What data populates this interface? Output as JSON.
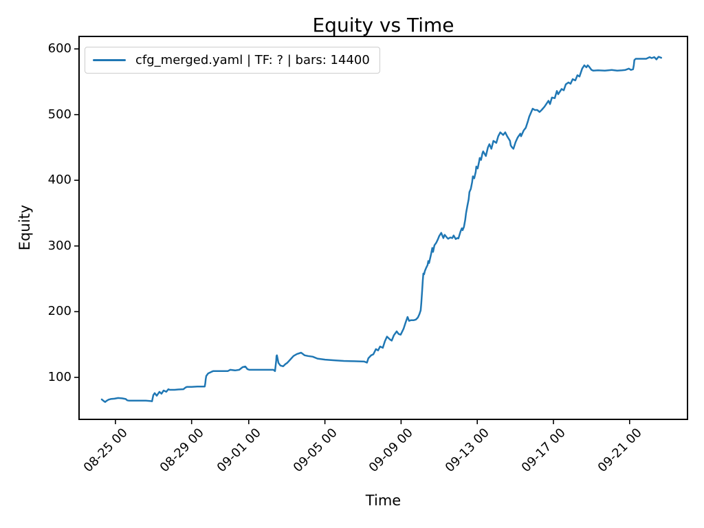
{
  "chart_data": {
    "type": "line",
    "title": "Equity vs Time",
    "xlabel": "Time",
    "ylabel": "Equity",
    "legend_position": "upper left",
    "line_color": "#1f77b4",
    "background_color": "#ffffff",
    "grid": false,
    "x_unit": "days since 08-23 00:00",
    "xlim_days": [
      0.09,
      32.04
    ],
    "ylim": [
      36,
      619
    ],
    "yticks": [
      100,
      200,
      300,
      400,
      500,
      600
    ],
    "xticks": [
      {
        "t": 2,
        "label": "08-25 00"
      },
      {
        "t": 6,
        "label": "08-29 00"
      },
      {
        "t": 9,
        "label": "09-01 00"
      },
      {
        "t": 13,
        "label": "09-05 00"
      },
      {
        "t": 17,
        "label": "09-09 00"
      },
      {
        "t": 21,
        "label": "09-13 00"
      },
      {
        "t": 25,
        "label": "09-17 00"
      },
      {
        "t": 29,
        "label": "09-21 00"
      }
    ],
    "series": [
      {
        "name": "cfg_merged.yaml | TF: ? | bars: 14400",
        "points": [
          [
            1.28,
            66.5
          ],
          [
            1.38,
            64.0
          ],
          [
            1.46,
            62.5
          ],
          [
            1.55,
            64.5
          ],
          [
            1.64,
            66.0
          ],
          [
            1.75,
            67.0
          ],
          [
            1.95,
            67.5
          ],
          [
            2.14,
            68.5
          ],
          [
            2.35,
            68.0
          ],
          [
            2.54,
            67.0
          ],
          [
            2.62,
            65.0
          ],
          [
            2.72,
            64.5
          ],
          [
            3.0,
            64.5
          ],
          [
            3.34,
            64.5
          ],
          [
            3.6,
            64.5
          ],
          [
            3.81,
            64.0
          ],
          [
            3.92,
            63.5
          ],
          [
            3.99,
            73.0
          ],
          [
            4.06,
            76.0
          ],
          [
            4.17,
            72.0
          ],
          [
            4.31,
            78.0
          ],
          [
            4.42,
            75.0
          ],
          [
            4.53,
            80.0
          ],
          [
            4.67,
            78.0
          ],
          [
            4.78,
            82.0
          ],
          [
            4.85,
            81.0
          ],
          [
            5.1,
            81.0
          ],
          [
            5.3,
            81.5
          ],
          [
            5.57,
            82.0
          ],
          [
            5.68,
            84.5
          ],
          [
            5.76,
            85.5
          ],
          [
            6.0,
            85.5
          ],
          [
            6.3,
            86.0
          ],
          [
            6.69,
            86.0
          ],
          [
            6.72,
            91.0
          ],
          [
            6.74,
            97.0
          ],
          [
            6.77,
            102.0
          ],
          [
            6.87,
            106.0
          ],
          [
            7.05,
            108.5
          ],
          [
            7.13,
            109.5
          ],
          [
            7.5,
            109.5
          ],
          [
            7.9,
            109.5
          ],
          [
            8.03,
            111.5
          ],
          [
            8.28,
            110.5
          ],
          [
            8.5,
            111.5
          ],
          [
            8.68,
            115.5
          ],
          [
            8.82,
            116.5
          ],
          [
            8.93,
            112.5
          ],
          [
            9.04,
            111.5
          ],
          [
            9.5,
            111.5
          ],
          [
            10.0,
            111.5
          ],
          [
            10.3,
            111.5
          ],
          [
            10.38,
            109.5
          ],
          [
            10.44,
            125.0
          ],
          [
            10.46,
            132.5
          ],
          [
            10.48,
            133.5
          ],
          [
            10.56,
            122.0
          ],
          [
            10.66,
            118.0
          ],
          [
            10.81,
            116.8
          ],
          [
            10.92,
            120.0
          ],
          [
            11.02,
            122.0
          ],
          [
            11.21,
            128.0
          ],
          [
            11.35,
            132.5
          ],
          [
            11.53,
            135.5
          ],
          [
            11.64,
            136.5
          ],
          [
            11.75,
            137.5
          ],
          [
            11.93,
            133.5
          ],
          [
            12.11,
            132.5
          ],
          [
            12.36,
            131.5
          ],
          [
            12.61,
            128.5
          ],
          [
            13.01,
            127.0
          ],
          [
            13.44,
            126.0
          ],
          [
            13.99,
            125.0
          ],
          [
            14.53,
            124.5
          ],
          [
            15.07,
            124.0
          ],
          [
            15.21,
            122.5
          ],
          [
            15.28,
            129.0
          ],
          [
            15.43,
            133.5
          ],
          [
            15.54,
            135.0
          ],
          [
            15.68,
            143.0
          ],
          [
            15.79,
            141.0
          ],
          [
            15.9,
            147.0
          ],
          [
            16.04,
            145.0
          ],
          [
            16.15,
            155.0
          ],
          [
            16.26,
            162.0
          ],
          [
            16.4,
            158.0
          ],
          [
            16.51,
            156.0
          ],
          [
            16.62,
            164.0
          ],
          [
            16.77,
            170.0
          ],
          [
            16.87,
            166.0
          ],
          [
            16.98,
            165.0
          ],
          [
            17.13,
            174.0
          ],
          [
            17.23,
            183.0
          ],
          [
            17.34,
            192.0
          ],
          [
            17.42,
            186.0
          ],
          [
            17.52,
            187.0
          ],
          [
            17.67,
            187.0
          ],
          [
            17.78,
            188.0
          ],
          [
            17.88,
            191.0
          ],
          [
            17.96,
            196.0
          ],
          [
            18.03,
            202.0
          ],
          [
            18.06,
            213.0
          ],
          [
            18.1,
            230.0
          ],
          [
            18.14,
            248.0
          ],
          [
            18.17,
            258.0
          ],
          [
            18.21,
            257.0
          ],
          [
            18.25,
            262.0
          ],
          [
            18.32,
            267.0
          ],
          [
            18.39,
            271.0
          ],
          [
            18.43,
            277.0
          ],
          [
            18.47,
            274.0
          ],
          [
            18.57,
            287.0
          ],
          [
            18.64,
            297.0
          ],
          [
            18.68,
            291.0
          ],
          [
            18.75,
            301.0
          ],
          [
            18.85,
            305.0
          ],
          [
            18.93,
            310.0
          ],
          [
            19.0,
            315.0
          ],
          [
            19.11,
            320.0
          ],
          [
            19.22,
            312.0
          ],
          [
            19.29,
            317.0
          ],
          [
            19.4,
            313.0
          ],
          [
            19.47,
            311.0
          ],
          [
            19.58,
            313.0
          ],
          [
            19.69,
            312.0
          ],
          [
            19.76,
            316.0
          ],
          [
            19.87,
            310.5
          ],
          [
            19.95,
            312.0
          ],
          [
            20.01,
            311.5
          ],
          [
            20.12,
            322.0
          ],
          [
            20.19,
            327.0
          ],
          [
            20.23,
            324.0
          ],
          [
            20.3,
            329.0
          ],
          [
            20.37,
            340.0
          ],
          [
            20.41,
            350.0
          ],
          [
            20.48,
            361.0
          ],
          [
            20.55,
            371.0
          ],
          [
            20.59,
            382.0
          ],
          [
            20.66,
            387.0
          ],
          [
            20.73,
            397.0
          ],
          [
            20.77,
            406.0
          ],
          [
            20.84,
            403.0
          ],
          [
            20.92,
            413.0
          ],
          [
            20.95,
            421.0
          ],
          [
            21.02,
            418.0
          ],
          [
            21.1,
            429.0
          ],
          [
            21.13,
            434.0
          ],
          [
            21.2,
            431.0
          ],
          [
            21.27,
            441.0
          ],
          [
            21.31,
            444.0
          ],
          [
            21.45,
            437.0
          ],
          [
            21.56,
            450.0
          ],
          [
            21.64,
            455.0
          ],
          [
            21.74,
            448.0
          ],
          [
            21.85,
            460.0
          ],
          [
            22.0,
            457.0
          ],
          [
            22.1,
            467.0
          ],
          [
            22.21,
            473.0
          ],
          [
            22.36,
            469.0
          ],
          [
            22.47,
            473.0
          ],
          [
            22.57,
            467.0
          ],
          [
            22.72,
            460.0
          ],
          [
            22.76,
            453.0
          ],
          [
            22.83,
            450.0
          ],
          [
            22.9,
            448.0
          ],
          [
            23.01,
            458.0
          ],
          [
            23.12,
            465.0
          ],
          [
            23.26,
            471.0
          ],
          [
            23.3,
            467.0
          ],
          [
            23.44,
            476.0
          ],
          [
            23.55,
            480.0
          ],
          [
            23.66,
            490.0
          ],
          [
            23.73,
            497.0
          ],
          [
            23.91,
            509.0
          ],
          [
            24.02,
            507.0
          ],
          [
            24.15,
            507.0
          ],
          [
            24.27,
            504.0
          ],
          [
            24.38,
            507.0
          ],
          [
            24.53,
            512.0
          ],
          [
            24.74,
            521.0
          ],
          [
            24.82,
            516.0
          ],
          [
            24.92,
            526.0
          ],
          [
            25.07,
            525.0
          ],
          [
            25.18,
            536.0
          ],
          [
            25.25,
            531.0
          ],
          [
            25.43,
            539.0
          ],
          [
            25.54,
            537.0
          ],
          [
            25.65,
            546.0
          ],
          [
            25.79,
            549.0
          ],
          [
            25.9,
            547.0
          ],
          [
            26.01,
            554.0
          ],
          [
            26.15,
            552.0
          ],
          [
            26.26,
            560.0
          ],
          [
            26.37,
            558.0
          ],
          [
            26.51,
            570.0
          ],
          [
            26.62,
            575.0
          ],
          [
            26.73,
            572.0
          ],
          [
            26.8,
            575.0
          ],
          [
            26.87,
            573.0
          ],
          [
            27.0,
            568.0
          ],
          [
            27.09,
            567.0
          ],
          [
            27.34,
            567.5
          ],
          [
            27.7,
            567.0
          ],
          [
            28.06,
            568.0
          ],
          [
            28.35,
            567.0
          ],
          [
            28.6,
            567.5
          ],
          [
            28.78,
            568.0
          ],
          [
            28.96,
            570.0
          ],
          [
            29.07,
            568.0
          ],
          [
            29.18,
            569.0
          ],
          [
            29.22,
            575.0
          ],
          [
            29.25,
            583.0
          ],
          [
            29.32,
            585.0
          ],
          [
            29.51,
            585.0
          ],
          [
            29.69,
            585.0
          ],
          [
            29.87,
            585.0
          ],
          [
            30.05,
            587.5
          ],
          [
            30.16,
            586.0
          ],
          [
            30.3,
            587.5
          ],
          [
            30.41,
            584.0
          ],
          [
            30.52,
            588.0
          ],
          [
            30.66,
            586.5
          ]
        ]
      }
    ]
  },
  "legend": {
    "label": "cfg_merged.yaml | TF: ? | bars: 14400"
  }
}
